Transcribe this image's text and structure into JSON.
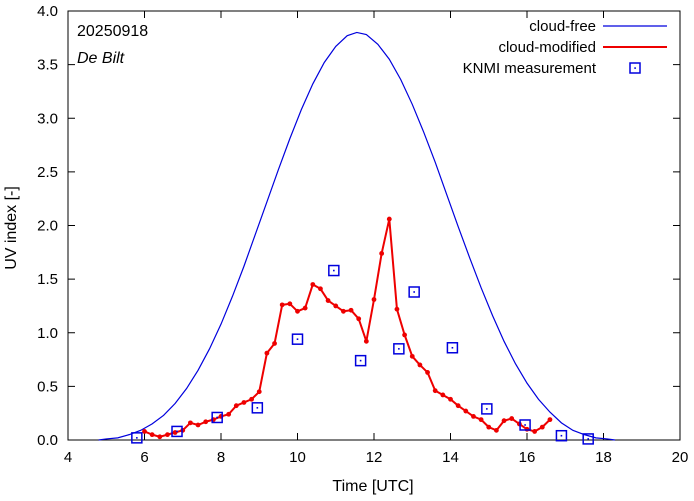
{
  "chart_data": {
    "type": "line",
    "title": "",
    "xlabel": "Time  [UTC]",
    "ylabel": "UV index  [-]",
    "xlim": [
      4,
      20
    ],
    "ylim": [
      0,
      4.0
    ],
    "x_ticks": [
      4,
      6,
      8,
      10,
      12,
      14,
      16,
      18,
      20
    ],
    "y_ticks": [
      0.0,
      0.5,
      1.0,
      1.5,
      2.0,
      2.5,
      3.0,
      3.5,
      4.0
    ],
    "x_tick_labels": [
      "4",
      "6",
      "8",
      "10",
      "12",
      "14",
      "16",
      "18",
      "20"
    ],
    "y_tick_labels": [
      "0.0",
      "0.5",
      "1.0",
      "1.5",
      "2.0",
      "2.5",
      "3.0",
      "3.5",
      "4.0"
    ],
    "grid": false,
    "legend_position": "top-right",
    "annotations": {
      "date": "20250918",
      "station": "De Bilt"
    },
    "series": [
      {
        "name": "cloud-free",
        "style": "line",
        "color": "#0000dd",
        "x": [
          4.8,
          5.0,
          5.3,
          5.6,
          5.9,
          6.2,
          6.5,
          6.8,
          7.1,
          7.4,
          7.7,
          8.0,
          8.3,
          8.6,
          8.9,
          9.2,
          9.5,
          9.8,
          10.1,
          10.4,
          10.7,
          11.0,
          11.3,
          11.55,
          11.8,
          12.1,
          12.4,
          12.7,
          13.0,
          13.3,
          13.6,
          13.9,
          14.2,
          14.5,
          14.8,
          15.1,
          15.4,
          15.7,
          16.0,
          16.3,
          16.6,
          16.9,
          17.2,
          17.5,
          17.8,
          18.1,
          18.3
        ],
        "values": [
          0.0,
          0.01,
          0.02,
          0.05,
          0.09,
          0.15,
          0.23,
          0.34,
          0.48,
          0.65,
          0.85,
          1.08,
          1.34,
          1.62,
          1.92,
          2.22,
          2.52,
          2.81,
          3.08,
          3.32,
          3.52,
          3.67,
          3.77,
          3.8,
          3.78,
          3.69,
          3.55,
          3.36,
          3.13,
          2.87,
          2.59,
          2.29,
          1.99,
          1.7,
          1.42,
          1.16,
          0.92,
          0.71,
          0.53,
          0.38,
          0.26,
          0.16,
          0.09,
          0.05,
          0.02,
          0.01,
          0.0
        ]
      },
      {
        "name": "cloud-modified",
        "style": "line-points",
        "color": "#ee0000",
        "x": [
          6.0,
          6.2,
          6.4,
          6.6,
          6.8,
          7.0,
          7.2,
          7.4,
          7.6,
          7.8,
          8.0,
          8.2,
          8.4,
          8.6,
          8.8,
          9.0,
          9.2,
          9.4,
          9.6,
          9.8,
          10.0,
          10.2,
          10.4,
          10.6,
          10.8,
          11.0,
          11.2,
          11.4,
          11.6,
          11.8,
          12.0,
          12.2,
          12.4,
          12.6,
          12.8,
          13.0,
          13.2,
          13.4,
          13.6,
          13.8,
          14.0,
          14.2,
          14.4,
          14.6,
          14.8,
          15.0,
          15.2,
          15.4,
          15.6,
          15.8,
          16.0,
          16.2,
          16.4,
          16.6
        ],
        "values": [
          0.08,
          0.05,
          0.03,
          0.05,
          0.07,
          0.09,
          0.16,
          0.14,
          0.17,
          0.19,
          0.22,
          0.24,
          0.32,
          0.35,
          0.38,
          0.45,
          0.81,
          0.9,
          1.26,
          1.27,
          1.2,
          1.23,
          1.45,
          1.41,
          1.3,
          1.25,
          1.2,
          1.21,
          1.13,
          0.92,
          1.31,
          1.74,
          2.06,
          1.22,
          0.98,
          0.78,
          0.7,
          0.63,
          0.46,
          0.42,
          0.38,
          0.32,
          0.27,
          0.22,
          0.19,
          0.12,
          0.09,
          0.18,
          0.2,
          0.15,
          0.1,
          0.08,
          0.12,
          0.19
        ]
      },
      {
        "name": "KNMI measurement",
        "style": "marker-square",
        "color": "#0000dd",
        "x": [
          5.8,
          6.85,
          7.9,
          8.95,
          10.0,
          10.95,
          11.65,
          12.65,
          13.05,
          14.05,
          14.95,
          15.95,
          16.9,
          17.6
        ],
        "values": [
          0.02,
          0.08,
          0.21,
          0.3,
          0.94,
          1.58,
          0.74,
          0.85,
          1.38,
          0.86,
          0.29,
          0.14,
          0.04,
          0.01
        ]
      }
    ]
  }
}
